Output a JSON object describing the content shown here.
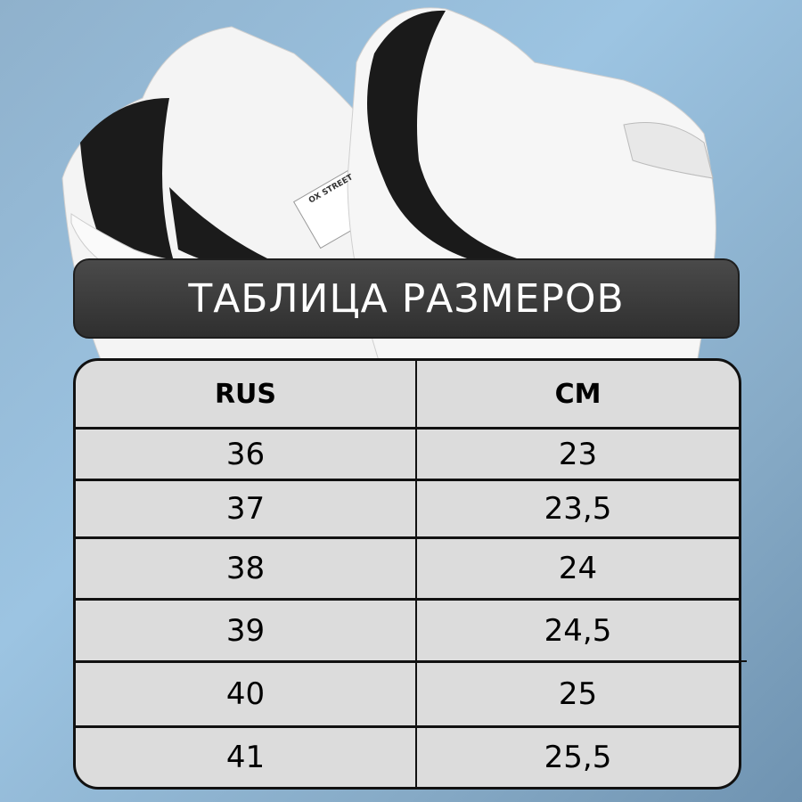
{
  "title": "ТАБЛИЦА РАЗМЕРОВ",
  "table": {
    "headers": [
      "RUS",
      "CM"
    ],
    "rows": [
      [
        "36",
        "23"
      ],
      [
        "37",
        "23,5"
      ],
      [
        "38",
        "24"
      ],
      [
        "39",
        "24,5"
      ],
      [
        "40",
        "25"
      ],
      [
        "41",
        "25,5"
      ]
    ]
  },
  "product_tag": "OX STREET",
  "colors": {
    "background": "#9cc4e2",
    "title_bar": "#3a3a3a",
    "table_bg": "#dcdcdc"
  }
}
